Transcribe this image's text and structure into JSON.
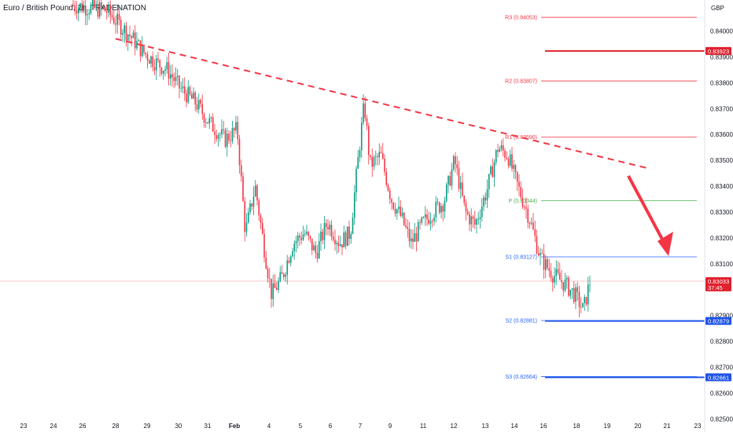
{
  "chart_data": {
    "type": "candlestick",
    "title": "Euro / British Pound, 1h, TRADENATION",
    "currency": "GBP",
    "y_ticks": [
      0.84,
      0.839,
      0.838,
      0.837,
      0.836,
      0.835,
      0.834,
      0.833,
      0.832,
      0.831,
      0.829,
      0.828,
      0.827,
      0.826,
      0.825
    ],
    "x_ticks": [
      "23",
      "24",
      "26",
      "28",
      "29",
      "30",
      "31",
      "Feb",
      "4",
      "5",
      "6",
      "7",
      "9",
      "11",
      "12",
      "13",
      "14",
      "16",
      "18",
      "19",
      "20",
      "21",
      "23"
    ],
    "pivot_levels": [
      {
        "label": "R3 (0.84053)",
        "value": 0.84053,
        "color": "#f23645"
      },
      {
        "label": "R2 (0.83807)",
        "value": 0.83807,
        "color": "#f23645"
      },
      {
        "label": "R1 (0.83590)",
        "value": 0.8359,
        "color": "#f23645"
      },
      {
        "label": "P (0.83344)",
        "value": 0.83344,
        "color": "#4caf50"
      },
      {
        "label": "S1 (0.83127)",
        "value": 0.83127,
        "color": "#2962ff"
      },
      {
        "label": "S2 (0.82881)",
        "value": 0.82881,
        "color": "#2962ff"
      },
      {
        "label": "S3 (0.82664)",
        "value": 0.82664,
        "color": "#2962ff"
      }
    ],
    "price_tags": [
      {
        "text": "0.83923",
        "value": 0.83923,
        "color": "#e0212e"
      },
      {
        "text": "0.83033",
        "sub": "37:45",
        "value": 0.83033,
        "color": "#e0212e"
      },
      {
        "text": "0.82879",
        "value": 0.82879,
        "color": "#1e53e5"
      },
      {
        "text": "0.82661",
        "value": 0.82661,
        "color": "#1e53e5"
      }
    ],
    "horizontal_lines": [
      {
        "value": 0.83923,
        "color": "#e0212e",
        "width": 2
      },
      {
        "value": 0.82879,
        "color": "#1e53e5",
        "width": 2
      },
      {
        "value": 0.82661,
        "color": "#1e53e5",
        "width": 2
      }
    ],
    "current_price": 0.83033,
    "trendline": {
      "from": {
        "x": "28",
        "y": 0.8397
      },
      "to": {
        "x": "20",
        "y": 0.8347
      },
      "color": "#f23645",
      "dashed": true
    },
    "arrow": {
      "from": {
        "x": "20",
        "y": 0.8344
      },
      "to": {
        "x": "21",
        "y": 0.8313
      },
      "color": "#f23645"
    },
    "price_path": [
      [
        0.0,
        0.841
      ],
      [
        0.04,
        0.8408
      ],
      [
        0.055,
        0.8403
      ],
      [
        0.07,
        0.8398
      ],
      [
        0.085,
        0.8392
      ],
      [
        0.1,
        0.8388
      ],
      [
        0.115,
        0.8385
      ],
      [
        0.13,
        0.8378
      ],
      [
        0.15,
        0.8372
      ],
      [
        0.165,
        0.8365
      ],
      [
        0.185,
        0.8358
      ],
      [
        0.2,
        0.8362
      ],
      [
        0.21,
        0.8322
      ],
      [
        0.222,
        0.834
      ],
      [
        0.232,
        0.8318
      ],
      [
        0.242,
        0.8298
      ],
      [
        0.255,
        0.8305
      ],
      [
        0.268,
        0.8318
      ],
      [
        0.282,
        0.8322
      ],
      [
        0.296,
        0.8314
      ],
      [
        0.31,
        0.8326
      ],
      [
        0.325,
        0.8318
      ],
      [
        0.338,
        0.8322
      ],
      [
        0.35,
        0.8358
      ],
      [
        0.355,
        0.8372
      ],
      [
        0.362,
        0.8348
      ],
      [
        0.375,
        0.8352
      ],
      [
        0.388,
        0.8335
      ],
      [
        0.4,
        0.8328
      ],
      [
        0.412,
        0.8318
      ],
      [
        0.425,
        0.8325
      ],
      [
        0.438,
        0.833
      ],
      [
        0.452,
        0.8334
      ],
      [
        0.465,
        0.835
      ],
      [
        0.478,
        0.833
      ],
      [
        0.49,
        0.8325
      ],
      [
        0.504,
        0.8338
      ],
      [
        0.518,
        0.8355
      ],
      [
        0.53,
        0.8352
      ],
      [
        0.542,
        0.834
      ],
      [
        0.556,
        0.8328
      ],
      [
        0.57,
        0.8312
      ],
      [
        0.585,
        0.8306
      ],
      [
        0.6,
        0.8302
      ],
      [
        0.612,
        0.8298
      ],
      [
        0.622,
        0.8292
      ],
      [
        0.63,
        0.8303
      ]
    ]
  }
}
